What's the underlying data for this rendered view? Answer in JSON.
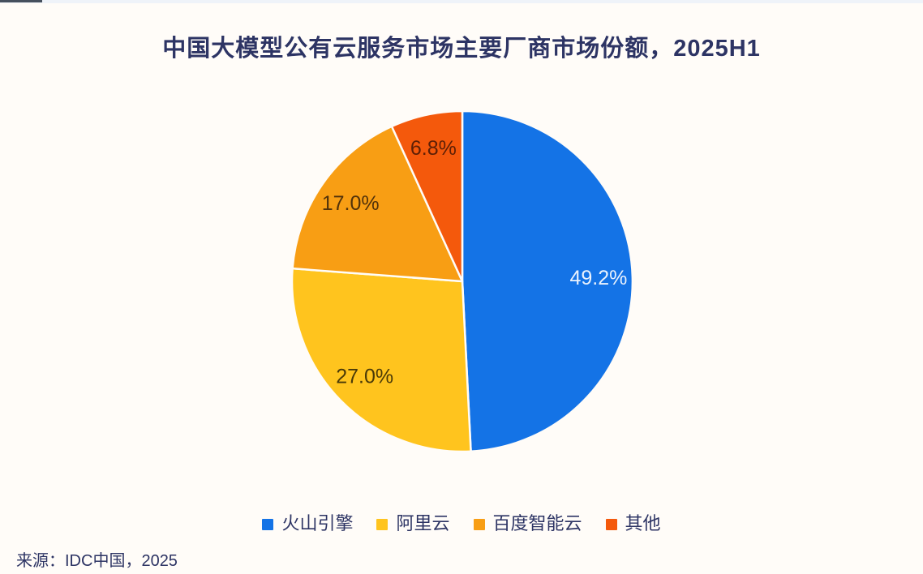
{
  "theme": {
    "background": "#FFFCF8",
    "text_color": "#2D3464",
    "top_strip_color": "#EFF3F9",
    "top_strip_mark_color": "#46505E",
    "slice_separator_color": "#FFFCF8"
  },
  "chart_data": {
    "type": "pie",
    "title": "中国大模型公有云服务市场主要厂商市场份额，2025H1",
    "labels": [
      "火山引擎",
      "阿里云",
      "百度智能云",
      "其他"
    ],
    "values": [
      49.2,
      27.0,
      17.0,
      6.8
    ],
    "value_labels": [
      "49.2%",
      "27.0%",
      "17.0%",
      "6.8%"
    ],
    "unit": "%",
    "colors": [
      "#1473E6",
      "#FFC41E",
      "#F89E14",
      "#F4590C"
    ],
    "label_text_colors": [
      "#EAF2FD",
      "#4A3A08",
      "#52320A",
      "#5C1F06"
    ],
    "start_angle_deg": 0,
    "direction": "clockwise",
    "label_radius_ratio": 0.8,
    "legend_position": "bottom",
    "source": "来源：IDC中国，2025"
  }
}
